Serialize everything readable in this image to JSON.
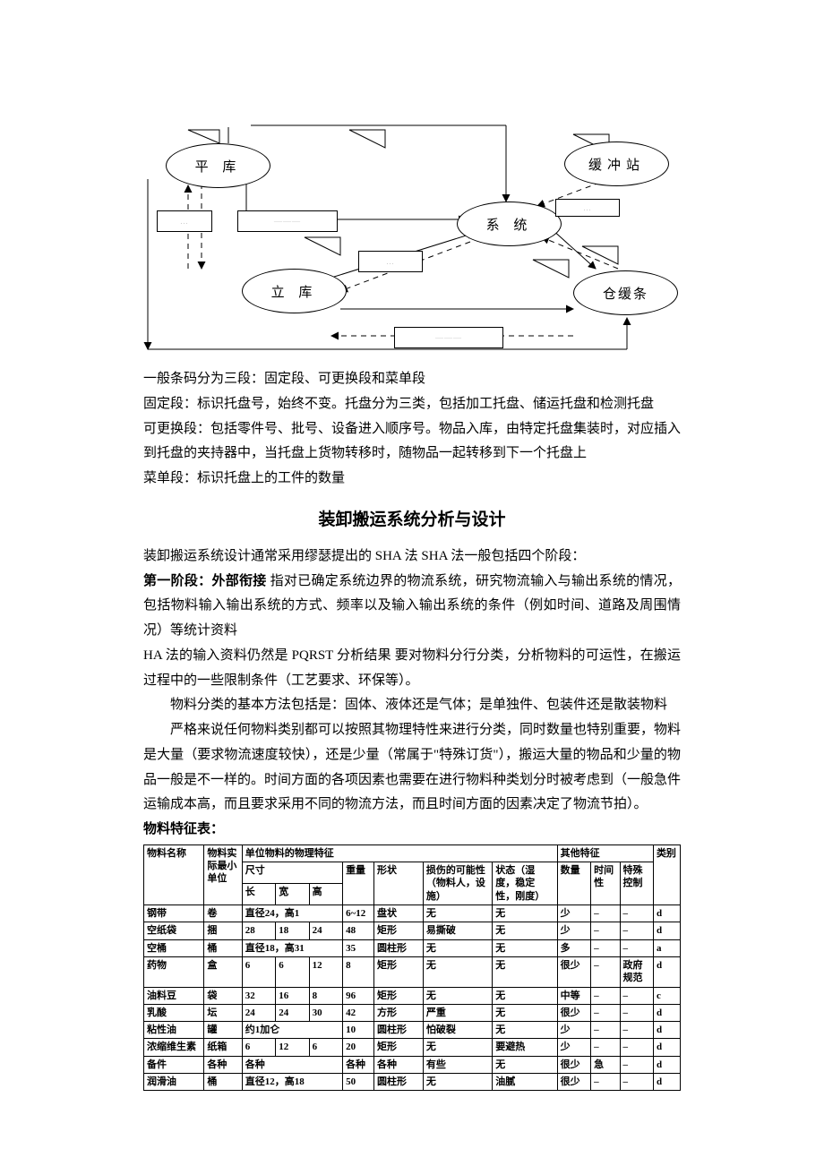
{
  "diagram": {
    "nodes": {
      "pingku": "平 库",
      "huanchong": "缓冲站",
      "xitong": "系 统",
      "liku": "立 库",
      "canghuantiao": "仓缓条"
    },
    "rect_placeholder": "—",
    "svg": {
      "viewbox_w": 920,
      "viewbox_h": 410,
      "stroke": "#000000",
      "dash": "6,5"
    }
  },
  "body": {
    "p1": "一般条码分为三段：固定段、可更换段和菜单段",
    "p2": "固定段：标识托盘号，始终不变。托盘分为三类，包括加工托盘、储运托盘和检测托盘",
    "p3": "可更换段：包括零件号、批号、设备进入顺序号。物品入库，由特定托盘集装时，对应插入到托盘的夹持器中，当托盘上货物转移时，随物品一起转移到下一个托盘上",
    "p4": "菜单段：标识托盘上的工件的数量",
    "title": "装卸搬运系统分析与设计",
    "p5": "装卸搬运系统设计通常采用缪瑟提出的 SHA 法   SHA 法一般包括四个阶段：",
    "p6_label": "第一阶段：外部衔接",
    "p6_rest": "   指对已确定系统边界的物流系统，研究物流输入与输出系统的情况，包括物料输入输出系统的方式、频率以及输入输出系统的条件（例如时间、道路及周围情况）等统计资料",
    "p7": "HA 法的输入资料仍然是 PQRST 分析结果   要对物料分行分类，分析物料的可运性，在搬运过程中的一些限制条件（工艺要求、环保等）。",
    "p8": "物料分类的基本方法包括是：固体、液体还是气体；是单独件、包装件还是散装物料",
    "p9": "严格来说任何物料类别都可以按照其物理特性来进行分类，同时数量也特别重要，物料是大量（要求物流速度较快），还是少量（常属于\"特殊订货\"），搬运大量的物品和少量的物品一般是不一样的。时间方面的各项因素也需要在进行物料种类划分时被考虑到（一般急件运输成本高，而且要求采用不同的物流方法，而且时间方面的因素决定了物流节拍）。",
    "p10": "物料特征表："
  },
  "table": {
    "headers": {
      "name": "物料名称",
      "unit": "物料实际最小单位",
      "phys_group": "单位物料的物理特征",
      "dim": "尺寸",
      "length": "长",
      "width": "宽",
      "height": "高",
      "weight": "重量",
      "shape": "形状",
      "damage": "损伤的可能性（物料人，设施）",
      "state": "状态（湿度，稳定性，刚度）",
      "other_group": "其他特征",
      "qty": "数量",
      "time": "时间性",
      "ctrl": "特殊控制",
      "class": "类别"
    },
    "col_widths": [
      "54",
      "34",
      "30",
      "30",
      "30",
      "28",
      "44",
      "62",
      "58",
      "30",
      "26",
      "30",
      "24"
    ],
    "rows": [
      {
        "name": "钢带",
        "unit": "卷",
        "len": "直径24，高1",
        "wid": "",
        "hei": "",
        "wt": "6~12",
        "shape": "盘状",
        "dmg": "无",
        "state": "无",
        "qty": "少",
        "time": "–",
        "ctrl": "–",
        "cls": "d",
        "span_dim": 3
      },
      {
        "name": "空纸袋",
        "unit": "捆",
        "len": "28",
        "wid": "18",
        "hei": "24",
        "wt": "48",
        "shape": "矩形",
        "dmg": "易撕破",
        "state": "无",
        "qty": "少",
        "time": "–",
        "ctrl": "–",
        "cls": "d"
      },
      {
        "name": "空桶",
        "unit": "桶",
        "len": "直径18，高31",
        "wid": "",
        "hei": "",
        "wt": "35",
        "shape": "圆柱形",
        "dmg": "无",
        "state": "无",
        "qty": "多",
        "time": "–",
        "ctrl": "–",
        "cls": "a",
        "span_dim": 3
      },
      {
        "name": "药物",
        "unit": "盒",
        "len": "6",
        "wid": "6",
        "hei": "12",
        "wt": "8",
        "shape": "矩形",
        "dmg": "无",
        "state": "无",
        "qty": "很少",
        "time": "–",
        "ctrl": "政府规范",
        "cls": "d"
      },
      {
        "name": "油料豆",
        "unit": "袋",
        "len": "32",
        "wid": "16",
        "hei": "8",
        "wt": "96",
        "shape": "矩形",
        "dmg": "无",
        "state": "无",
        "qty": "中等",
        "time": "–",
        "ctrl": "–",
        "cls": "c"
      },
      {
        "name": "乳酸",
        "unit": "坛",
        "len": "24",
        "wid": "24",
        "hei": "30",
        "wt": "42",
        "shape": "方形",
        "dmg": "严重",
        "state": "无",
        "qty": "很少",
        "time": "–",
        "ctrl": "–",
        "cls": "d"
      },
      {
        "name": "粘性油",
        "unit": "罐",
        "len": "约1加仑",
        "wid": "",
        "hei": "",
        "wt": "10",
        "shape": "圆柱形",
        "dmg": "怕破裂",
        "state": "无",
        "qty": "少",
        "time": "–",
        "ctrl": "–",
        "cls": "d",
        "span_dim": 3
      },
      {
        "name": "浓缩维生素",
        "unit": "纸箱",
        "len": "6",
        "wid": "12",
        "hei": "6",
        "wt": "20",
        "shape": "矩形",
        "dmg": "无",
        "state": "要避热",
        "qty": "少",
        "time": "–",
        "ctrl": "–",
        "cls": "d"
      },
      {
        "name": "备件",
        "unit": "各种",
        "len": "各种",
        "wid": "",
        "hei": "",
        "wt": "各种",
        "shape": "各种",
        "dmg": "有些",
        "state": "无",
        "qty": "很少",
        "time": "急",
        "ctrl": "–",
        "cls": "d",
        "span_dim": 3
      },
      {
        "name": "润滑油",
        "unit": "桶",
        "len": "直径12，高18",
        "wid": "",
        "hei": "",
        "wt": "50",
        "shape": "圆柱形",
        "dmg": "无",
        "state": "油腻",
        "qty": "很少",
        "time": "–",
        "ctrl": "–",
        "cls": "d",
        "span_dim": 3
      }
    ]
  }
}
